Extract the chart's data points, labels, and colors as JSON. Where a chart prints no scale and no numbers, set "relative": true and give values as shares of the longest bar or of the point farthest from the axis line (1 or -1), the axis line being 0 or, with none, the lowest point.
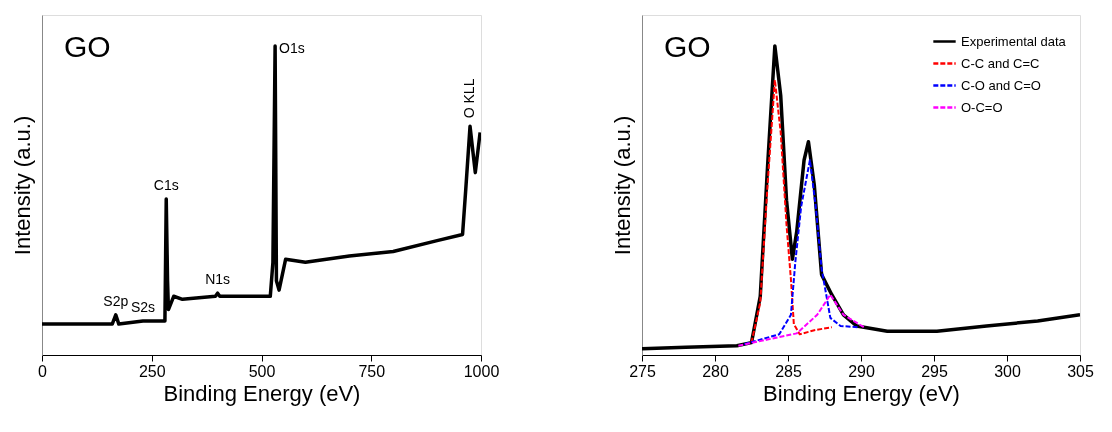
{
  "chart_data": [
    {
      "type": "line",
      "xlabel": "Binding Energy (eV)",
      "ylabel": "Intensity (a.u.)",
      "relative": true,
      "xlim": [
        0,
        1000
      ],
      "xticks": [
        0,
        250,
        500,
        750,
        1000
      ],
      "grid": false,
      "legend": false,
      "series": [
        {
          "color": "#000000",
          "line_style": "solid",
          "x": [
            0,
            100,
            160,
            168,
            175,
            230,
            280,
            283,
            286,
            288,
            300,
            320,
            395,
            400,
            405,
            520,
            526,
            531,
            534,
            540,
            555,
            600,
            700,
            800,
            900,
            958,
            965,
            975,
            987,
            998
          ],
          "values": [
            0.1,
            0.1,
            0.1,
            0.13,
            0.1,
            0.11,
            0.11,
            0.505,
            0.24,
            0.147,
            0.19,
            0.18,
            0.19,
            0.2,
            0.19,
            0.19,
            0.3,
            1.0,
            0.24,
            0.21,
            0.31,
            0.3,
            0.32,
            0.335,
            0.37,
            0.39,
            0.53,
            0.74,
            0.59,
            0.72
          ]
        }
      ],
      "annotations": [
        "GO",
        {
          "text": "S2p",
          "x": 168,
          "y": 0.13
        },
        {
          "text": "S2s",
          "x": 230,
          "y": 0.11
        },
        {
          "text": "C1s",
          "x": 283,
          "y": 0.505
        },
        {
          "text": "N1s",
          "x": 400,
          "y": 0.2
        },
        {
          "text": "O1s",
          "x": 531,
          "y": 1.0
        },
        {
          "text": "O KLL",
          "x": 975,
          "y": 0.74
        }
      ]
    },
    {
      "type": "line",
      "xlabel": "Binding Energy (eV)",
      "ylabel": "Intensity (a.u.)",
      "relative": true,
      "xlim": [
        275,
        305
      ],
      "xticks": [
        275,
        280,
        285,
        290,
        295,
        300,
        305
      ],
      "grid": false,
      "legend": "top right",
      "series": [
        {
          "name": "Experimental data",
          "color": "#000000",
          "line_style": "solid",
          "x": [
            275,
            278,
            281.5,
            282.5,
            283.1,
            283.6,
            284.1,
            284.5,
            284.9,
            285.3,
            285.6,
            286.1,
            286.4,
            286.8,
            287.3,
            288.0,
            288.8,
            289.7,
            291.8,
            295.2,
            298.6,
            302.1,
            305
          ],
          "values": [
            0.02,
            0.025,
            0.03,
            0.04,
            0.19,
            0.61,
            1.0,
            0.84,
            0.5,
            0.31,
            0.4,
            0.63,
            0.69,
            0.55,
            0.26,
            0.195,
            0.13,
            0.094,
            0.077,
            0.077,
            0.094,
            0.11,
            0.13
          ]
        },
        {
          "name": "C-C and C=C",
          "color": "#ff0000",
          "line_style": "dashed",
          "x": [
            282.5,
            283.1,
            283.6,
            284.1,
            284.5,
            284.9,
            285.2,
            285.4,
            285.8,
            286.8,
            288.0
          ],
          "values": [
            0.04,
            0.17,
            0.55,
            0.89,
            0.72,
            0.42,
            0.245,
            0.1,
            0.067,
            0.08,
            0.09
          ]
        },
        {
          "name": "C-O and C=O",
          "color": "#0000ff",
          "line_style": "dashed",
          "x": [
            282.0,
            284.4,
            285.2,
            285.5,
            285.9,
            286.5,
            286.9,
            287.3,
            287.9,
            288.6,
            289.8
          ],
          "values": [
            0.035,
            0.067,
            0.13,
            0.3,
            0.48,
            0.63,
            0.48,
            0.28,
            0.12,
            0.094,
            0.09
          ]
        },
        {
          "name": "O-C=O",
          "color": "#ff00ff",
          "line_style": "dashed",
          "x": [
            281.6,
            283.6,
            285.6,
            287.0,
            287.9,
            288.8,
            290.2
          ],
          "values": [
            0.03,
            0.05,
            0.07,
            0.13,
            0.195,
            0.13,
            0.09
          ]
        }
      ],
      "annotations": [
        "GO"
      ]
    }
  ]
}
